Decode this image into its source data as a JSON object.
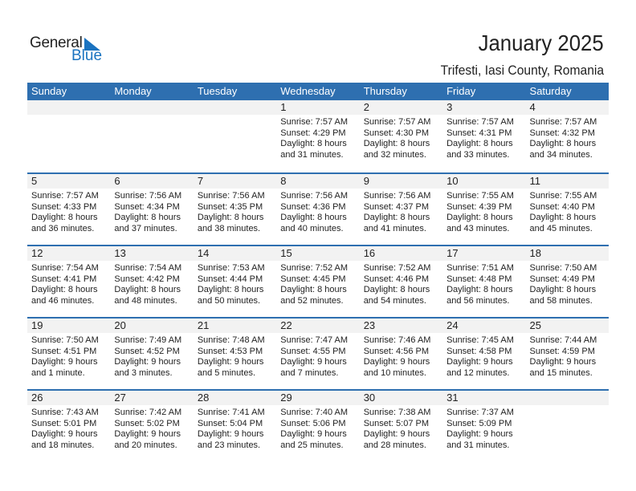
{
  "logo": {
    "word1": "General",
    "word2": "Blue"
  },
  "header": {
    "title": "January 2025",
    "location": "Trifesti, Iasi County, Romania"
  },
  "colors": {
    "header_bg": "#2e6fb0",
    "date_band": "#f2f2f2",
    "logo_blue": "#1a73c0"
  },
  "weekdays": [
    "Sunday",
    "Monday",
    "Tuesday",
    "Wednesday",
    "Thursday",
    "Friday",
    "Saturday"
  ],
  "weeks": [
    [
      null,
      null,
      null,
      {
        "day": "1",
        "sunrise": "Sunrise: 7:57 AM",
        "sunset": "Sunset: 4:29 PM",
        "daylight": "Daylight: 8 hours",
        "minutes": "and 31 minutes."
      },
      {
        "day": "2",
        "sunrise": "Sunrise: 7:57 AM",
        "sunset": "Sunset: 4:30 PM",
        "daylight": "Daylight: 8 hours",
        "minutes": "and 32 minutes."
      },
      {
        "day": "3",
        "sunrise": "Sunrise: 7:57 AM",
        "sunset": "Sunset: 4:31 PM",
        "daylight": "Daylight: 8 hours",
        "minutes": "and 33 minutes."
      },
      {
        "day": "4",
        "sunrise": "Sunrise: 7:57 AM",
        "sunset": "Sunset: 4:32 PM",
        "daylight": "Daylight: 8 hours",
        "minutes": "and 34 minutes."
      }
    ],
    [
      {
        "day": "5",
        "sunrise": "Sunrise: 7:57 AM",
        "sunset": "Sunset: 4:33 PM",
        "daylight": "Daylight: 8 hours",
        "minutes": "and 36 minutes."
      },
      {
        "day": "6",
        "sunrise": "Sunrise: 7:56 AM",
        "sunset": "Sunset: 4:34 PM",
        "daylight": "Daylight: 8 hours",
        "minutes": "and 37 minutes."
      },
      {
        "day": "7",
        "sunrise": "Sunrise: 7:56 AM",
        "sunset": "Sunset: 4:35 PM",
        "daylight": "Daylight: 8 hours",
        "minutes": "and 38 minutes."
      },
      {
        "day": "8",
        "sunrise": "Sunrise: 7:56 AM",
        "sunset": "Sunset: 4:36 PM",
        "daylight": "Daylight: 8 hours",
        "minutes": "and 40 minutes."
      },
      {
        "day": "9",
        "sunrise": "Sunrise: 7:56 AM",
        "sunset": "Sunset: 4:37 PM",
        "daylight": "Daylight: 8 hours",
        "minutes": "and 41 minutes."
      },
      {
        "day": "10",
        "sunrise": "Sunrise: 7:55 AM",
        "sunset": "Sunset: 4:39 PM",
        "daylight": "Daylight: 8 hours",
        "minutes": "and 43 minutes."
      },
      {
        "day": "11",
        "sunrise": "Sunrise: 7:55 AM",
        "sunset": "Sunset: 4:40 PM",
        "daylight": "Daylight: 8 hours",
        "minutes": "and 45 minutes."
      }
    ],
    [
      {
        "day": "12",
        "sunrise": "Sunrise: 7:54 AM",
        "sunset": "Sunset: 4:41 PM",
        "daylight": "Daylight: 8 hours",
        "minutes": "and 46 minutes."
      },
      {
        "day": "13",
        "sunrise": "Sunrise: 7:54 AM",
        "sunset": "Sunset: 4:42 PM",
        "daylight": "Daylight: 8 hours",
        "minutes": "and 48 minutes."
      },
      {
        "day": "14",
        "sunrise": "Sunrise: 7:53 AM",
        "sunset": "Sunset: 4:44 PM",
        "daylight": "Daylight: 8 hours",
        "minutes": "and 50 minutes."
      },
      {
        "day": "15",
        "sunrise": "Sunrise: 7:52 AM",
        "sunset": "Sunset: 4:45 PM",
        "daylight": "Daylight: 8 hours",
        "minutes": "and 52 minutes."
      },
      {
        "day": "16",
        "sunrise": "Sunrise: 7:52 AM",
        "sunset": "Sunset: 4:46 PM",
        "daylight": "Daylight: 8 hours",
        "minutes": "and 54 minutes."
      },
      {
        "day": "17",
        "sunrise": "Sunrise: 7:51 AM",
        "sunset": "Sunset: 4:48 PM",
        "daylight": "Daylight: 8 hours",
        "minutes": "and 56 minutes."
      },
      {
        "day": "18",
        "sunrise": "Sunrise: 7:50 AM",
        "sunset": "Sunset: 4:49 PM",
        "daylight": "Daylight: 8 hours",
        "minutes": "and 58 minutes."
      }
    ],
    [
      {
        "day": "19",
        "sunrise": "Sunrise: 7:50 AM",
        "sunset": "Sunset: 4:51 PM",
        "daylight": "Daylight: 9 hours",
        "minutes": "and 1 minute."
      },
      {
        "day": "20",
        "sunrise": "Sunrise: 7:49 AM",
        "sunset": "Sunset: 4:52 PM",
        "daylight": "Daylight: 9 hours",
        "minutes": "and 3 minutes."
      },
      {
        "day": "21",
        "sunrise": "Sunrise: 7:48 AM",
        "sunset": "Sunset: 4:53 PM",
        "daylight": "Daylight: 9 hours",
        "minutes": "and 5 minutes."
      },
      {
        "day": "22",
        "sunrise": "Sunrise: 7:47 AM",
        "sunset": "Sunset: 4:55 PM",
        "daylight": "Daylight: 9 hours",
        "minutes": "and 7 minutes."
      },
      {
        "day": "23",
        "sunrise": "Sunrise: 7:46 AM",
        "sunset": "Sunset: 4:56 PM",
        "daylight": "Daylight: 9 hours",
        "minutes": "and 10 minutes."
      },
      {
        "day": "24",
        "sunrise": "Sunrise: 7:45 AM",
        "sunset": "Sunset: 4:58 PM",
        "daylight": "Daylight: 9 hours",
        "minutes": "and 12 minutes."
      },
      {
        "day": "25",
        "sunrise": "Sunrise: 7:44 AM",
        "sunset": "Sunset: 4:59 PM",
        "daylight": "Daylight: 9 hours",
        "minutes": "and 15 minutes."
      }
    ],
    [
      {
        "day": "26",
        "sunrise": "Sunrise: 7:43 AM",
        "sunset": "Sunset: 5:01 PM",
        "daylight": "Daylight: 9 hours",
        "minutes": "and 18 minutes."
      },
      {
        "day": "27",
        "sunrise": "Sunrise: 7:42 AM",
        "sunset": "Sunset: 5:02 PM",
        "daylight": "Daylight: 9 hours",
        "minutes": "and 20 minutes."
      },
      {
        "day": "28",
        "sunrise": "Sunrise: 7:41 AM",
        "sunset": "Sunset: 5:04 PM",
        "daylight": "Daylight: 9 hours",
        "minutes": "and 23 minutes."
      },
      {
        "day": "29",
        "sunrise": "Sunrise: 7:40 AM",
        "sunset": "Sunset: 5:06 PM",
        "daylight": "Daylight: 9 hours",
        "minutes": "and 25 minutes."
      },
      {
        "day": "30",
        "sunrise": "Sunrise: 7:38 AM",
        "sunset": "Sunset: 5:07 PM",
        "daylight": "Daylight: 9 hours",
        "minutes": "and 28 minutes."
      },
      {
        "day": "31",
        "sunrise": "Sunrise: 7:37 AM",
        "sunset": "Sunset: 5:09 PM",
        "daylight": "Daylight: 9 hours",
        "minutes": "and 31 minutes."
      },
      null
    ]
  ]
}
